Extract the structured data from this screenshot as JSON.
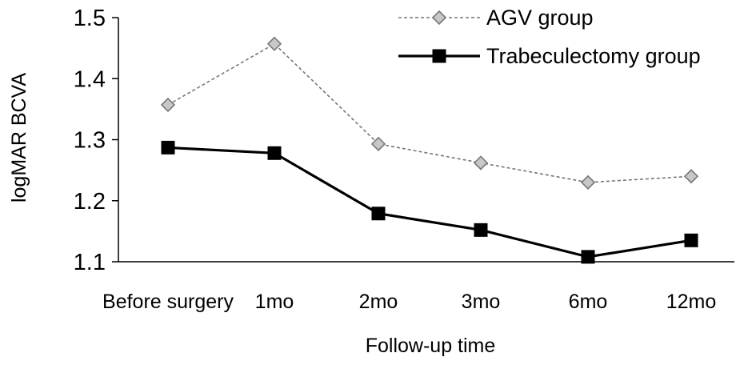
{
  "chart_data": {
    "type": "line",
    "title": "",
    "xlabel": "Follow-up time",
    "ylabel": "logMAR BCVA",
    "categories": [
      "Before surgery",
      "1mo",
      "2mo",
      "3mo",
      "6mo",
      "12mo"
    ],
    "ylim": [
      1.1,
      1.5
    ],
    "yticks": [
      "1.1",
      "1.2",
      "1.3",
      "1.4",
      "1.5"
    ],
    "grid": false,
    "legend_position": "top-right",
    "series": [
      {
        "name": "AGV group",
        "values": [
          1.357,
          1.457,
          1.293,
          1.262,
          1.23,
          1.24
        ],
        "color": "#777777",
        "line_style": "dashed",
        "marker": "diamond",
        "marker_fill": "#c8c8c8"
      },
      {
        "name": "Trabeculectomy group",
        "values": [
          1.287,
          1.278,
          1.179,
          1.152,
          1.108,
          1.135
        ],
        "color": "#000000",
        "line_style": "solid",
        "marker": "square",
        "marker_fill": "#000000"
      }
    ]
  }
}
